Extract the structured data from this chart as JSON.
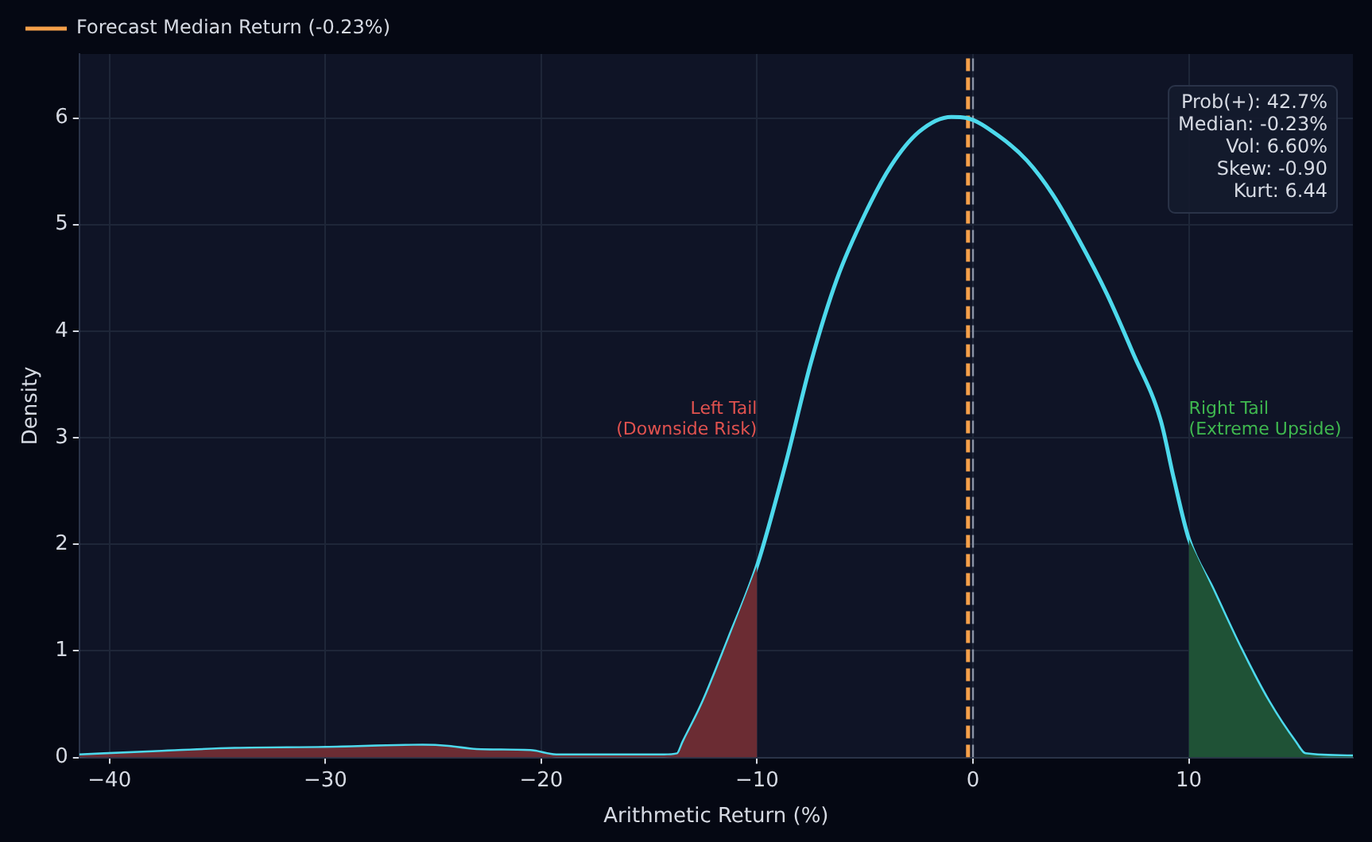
{
  "chart_data": {
    "type": "line",
    "xlabel": "Arithmetic Return (%)",
    "ylabel": "Density",
    "xlim": [
      -41.4,
      17.6
    ],
    "ylim": [
      0,
      6.6
    ],
    "xticks": [
      {
        "value": -40,
        "label": "−40"
      },
      {
        "value": -30,
        "label": "−30"
      },
      {
        "value": -20,
        "label": "−20"
      },
      {
        "value": -10,
        "label": "−10"
      },
      0,
      10
    ],
    "yticks": [
      0,
      1,
      2,
      3,
      4,
      5,
      6
    ],
    "grid": true,
    "legend": "top left",
    "marker": "none",
    "line_style": "solid",
    "series": [
      {
        "type": "area",
        "color": "#6b2c33",
        "x": [
          -41.4,
          -38,
          -34.2,
          -30,
          -25.5,
          -24.3,
          -23,
          -20.5,
          -19.3,
          -15.5,
          -14.3,
          -13.7,
          -13.4,
          -12.5,
          -11.3,
          -10
        ],
        "values": [
          0.02,
          0.05,
          0.08,
          0.09,
          0.11,
          0.1,
          0.07,
          0.06,
          0.02,
          0.02,
          0.02,
          0.03,
          0.15,
          0.52,
          1.12,
          1.8
        ]
      },
      {
        "type": "area",
        "color": "#1f5236",
        "x": [
          10,
          11.1,
          12.4,
          13.7,
          14.9,
          15.4,
          17.6
        ],
        "values": [
          2.05,
          1.58,
          1.02,
          0.52,
          0.15,
          0.03,
          0.01
        ]
      },
      {
        "color": "#4dd9ec",
        "x": [
          -41.4,
          -38,
          -34.2,
          -30,
          -25.5,
          -24.3,
          -23,
          -20.5,
          -19.3,
          -15.5,
          -14.3,
          -13.7,
          -13.4,
          -12.5,
          -11.3,
          -10,
          -8.7,
          -7.5,
          -6.3,
          -5,
          -3.8,
          -2.5,
          -1,
          -0.3,
          1.2,
          2.5,
          3.7,
          4.9,
          6.2,
          7.4,
          8.7,
          9.3,
          10,
          11.1,
          12.4,
          13.7,
          14.9,
          15.4,
          17.6
        ],
        "values": [
          0.02,
          0.05,
          0.08,
          0.09,
          0.11,
          0.1,
          0.07,
          0.06,
          0.02,
          0.02,
          0.02,
          0.03,
          0.15,
          0.52,
          1.12,
          1.8,
          2.74,
          3.71,
          4.49,
          5.1,
          5.55,
          5.87,
          6.01,
          6.0,
          5.83,
          5.6,
          5.28,
          4.86,
          4.35,
          3.8,
          3.16,
          2.62,
          2.05,
          1.58,
          1.02,
          0.52,
          0.15,
          0.03,
          0.01
        ]
      }
    ],
    "ref_lines": [
      {
        "axis": "x",
        "value": 0,
        "color": "#8a93a6",
        "line_style": "dashed"
      },
      {
        "axis": "x",
        "value": -0.23,
        "label": "Forecast Median Return (-0.23%)",
        "color": "#f5a04a",
        "line_style": "dashed"
      }
    ],
    "annotations": [
      "Left Tail\n(Downside Risk)",
      "Right Tail\n(Extreme Upside)",
      "Prob(+): 42.7%\nMedian: -0.23%\nVol: 6.60%\nSkew: -0.90\nKurt: 6.44"
    ]
  }
}
